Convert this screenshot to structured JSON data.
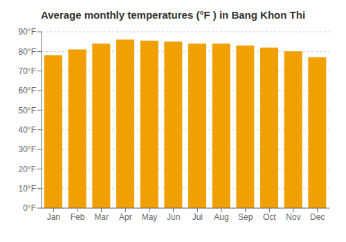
{
  "chart_data": {
    "type": "bar",
    "title": "Average monthly temperatures (°F ) in Bang Khon Thi",
    "categories": [
      "Jan",
      "Feb",
      "Mar",
      "Apr",
      "May",
      "Jun",
      "Jul",
      "Aug",
      "Sep",
      "Oct",
      "Nov",
      "Dec"
    ],
    "values": [
      78,
      81,
      84,
      86,
      85.5,
      85,
      84,
      84,
      83,
      82,
      80,
      77
    ],
    "color": "#F0A000",
    "ylim": [
      0,
      90
    ],
    "yticks": [
      {
        "value": 0,
        "label": "0°F"
      },
      {
        "value": 10,
        "label": "10°F"
      },
      {
        "value": 20,
        "label": "20°F"
      },
      {
        "value": 30,
        "label": "30°F"
      },
      {
        "value": 40,
        "label": "40°F"
      },
      {
        "value": 50,
        "label": "50°F"
      },
      {
        "value": 60,
        "label": "60°F"
      },
      {
        "value": 70,
        "label": "70°F"
      },
      {
        "value": 80,
        "label": "80°F"
      },
      {
        "value": 90,
        "label": "90°F"
      }
    ],
    "grid": true
  }
}
